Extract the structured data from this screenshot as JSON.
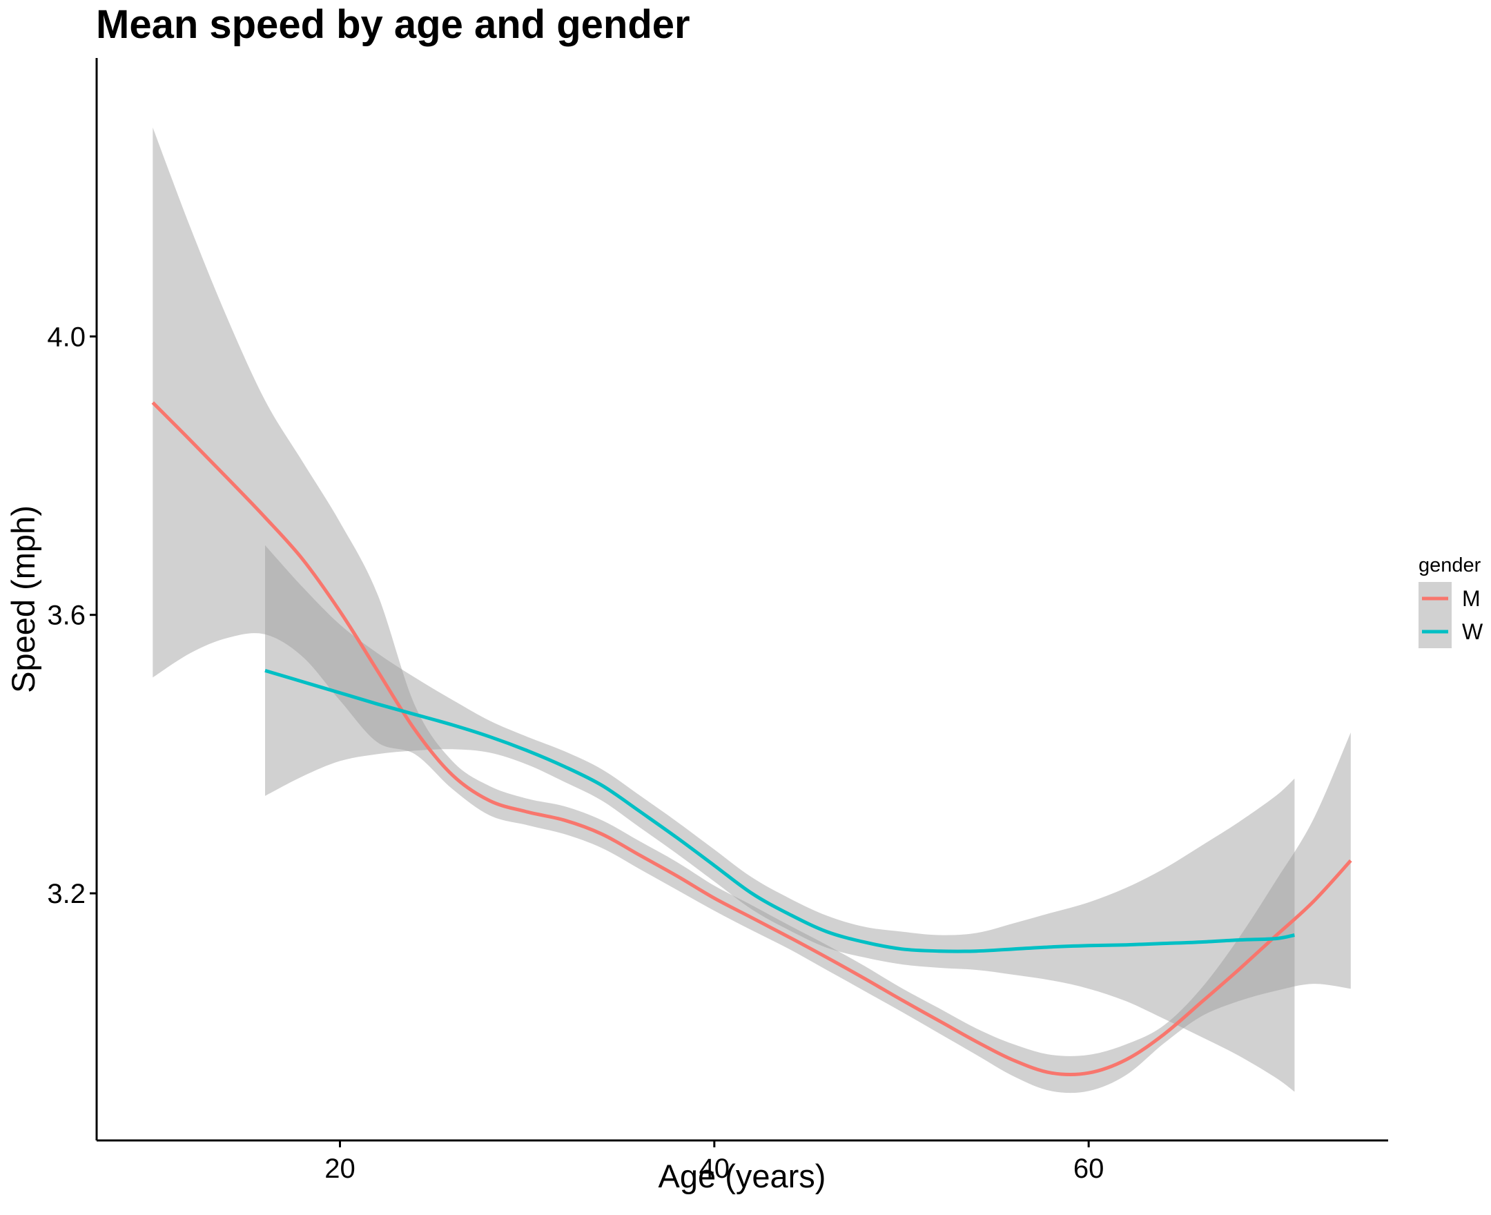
{
  "chart_data": {
    "type": "line",
    "title": "Mean speed by age and gender",
    "xlabel": "Age (years)",
    "ylabel": "Speed (mph)",
    "xlim": [
      7,
      76
    ],
    "ylim": [
      2.845,
      4.4
    ],
    "x_ticks": [
      20,
      40,
      60
    ],
    "x_tick_labels": [
      "20",
      "40",
      "60"
    ],
    "y_ticks": [
      3.2,
      3.6,
      4.0
    ],
    "y_tick_labels": [
      "3.2",
      "3.6",
      "4.0"
    ],
    "grid": false,
    "legend": {
      "title": "gender",
      "placement": "right"
    },
    "ribbon_color": "#999999",
    "series": [
      {
        "name": "M",
        "color": "#F8766D",
        "x": [
          10,
          12,
          14,
          16,
          18,
          20,
          22,
          24,
          26,
          28,
          30,
          32,
          34,
          36,
          38,
          40,
          42,
          44,
          46,
          48,
          50,
          52,
          54,
          56,
          58,
          60,
          62,
          64,
          66,
          68,
          70,
          72,
          74
        ],
        "y": [
          3.905,
          3.851,
          3.796,
          3.74,
          3.68,
          3.605,
          3.52,
          3.435,
          3.37,
          3.333,
          3.317,
          3.305,
          3.285,
          3.255,
          3.225,
          3.193,
          3.165,
          3.137,
          3.108,
          3.078,
          3.047,
          3.017,
          2.987,
          2.96,
          2.942,
          2.942,
          2.961,
          2.997,
          3.043,
          3.09,
          3.139,
          3.188,
          3.247
        ],
        "lower": [
          3.51,
          3.545,
          3.567,
          3.572,
          3.54,
          3.477,
          3.417,
          3.4,
          3.35,
          3.312,
          3.298,
          3.285,
          3.265,
          3.235,
          3.205,
          3.175,
          3.147,
          3.12,
          3.09,
          3.06,
          3.03,
          2.999,
          2.968,
          2.937,
          2.916,
          2.916,
          2.939,
          2.984,
          3.023,
          3.045,
          3.06,
          3.07,
          3.063
        ],
        "upper": [
          4.3,
          4.157,
          4.025,
          3.908,
          3.82,
          3.733,
          3.63,
          3.47,
          3.39,
          3.354,
          3.336,
          3.325,
          3.305,
          3.275,
          3.245,
          3.211,
          3.183,
          3.154,
          3.126,
          3.096,
          3.064,
          3.035,
          3.006,
          2.983,
          2.968,
          2.968,
          2.983,
          3.01,
          3.063,
          3.135,
          3.218,
          3.306,
          3.431
        ]
      },
      {
        "name": "W",
        "color": "#00BFC4",
        "x": [
          16,
          18,
          20,
          22,
          24,
          26,
          28,
          30,
          32,
          34,
          36,
          38,
          40,
          42,
          44,
          46,
          48,
          50,
          52,
          54,
          56,
          58,
          60,
          62,
          64,
          66,
          68,
          70,
          71
        ],
        "y": [
          3.52,
          3.504,
          3.488,
          3.472,
          3.457,
          3.442,
          3.425,
          3.405,
          3.382,
          3.355,
          3.318,
          3.28,
          3.24,
          3.2,
          3.17,
          3.145,
          3.13,
          3.12,
          3.117,
          3.117,
          3.12,
          3.123,
          3.125,
          3.126,
          3.128,
          3.13,
          3.133,
          3.135,
          3.14
        ],
        "lower": [
          3.34,
          3.368,
          3.39,
          3.4,
          3.405,
          3.407,
          3.402,
          3.385,
          3.36,
          3.333,
          3.295,
          3.257,
          3.217,
          3.177,
          3.147,
          3.122,
          3.108,
          3.098,
          3.093,
          3.09,
          3.083,
          3.075,
          3.063,
          3.045,
          3.02,
          2.994,
          2.967,
          2.935,
          2.915
        ],
        "upper": [
          3.7,
          3.64,
          3.586,
          3.545,
          3.51,
          3.478,
          3.448,
          3.425,
          3.404,
          3.378,
          3.341,
          3.303,
          3.263,
          3.223,
          3.193,
          3.168,
          3.152,
          3.145,
          3.14,
          3.143,
          3.157,
          3.172,
          3.187,
          3.208,
          3.235,
          3.268,
          3.302,
          3.34,
          3.365
        ]
      }
    ]
  }
}
